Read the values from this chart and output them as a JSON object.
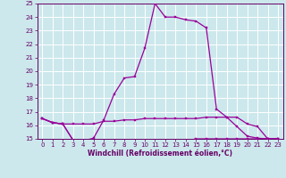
{
  "title": "",
  "xlabel": "Windchill (Refroidissement éolien,°C)",
  "background_color": "#cce8ec",
  "grid_color": "#ffffff",
  "line_color": "#990099",
  "xlim": [
    -0.5,
    23.5
  ],
  "ylim": [
    15,
    25
  ],
  "yticks": [
    15,
    16,
    17,
    18,
    19,
    20,
    21,
    22,
    23,
    24,
    25
  ],
  "xticks": [
    0,
    1,
    2,
    3,
    4,
    5,
    6,
    7,
    8,
    9,
    10,
    11,
    12,
    13,
    14,
    15,
    16,
    17,
    18,
    19,
    20,
    21,
    22,
    23
  ],
  "line1_x": [
    0,
    1,
    2,
    3,
    4,
    5,
    6,
    7,
    8,
    9,
    10,
    11,
    12,
    13,
    14,
    15,
    16,
    17,
    18,
    19,
    20,
    21,
    22,
    23
  ],
  "line1_y": [
    16.5,
    16.2,
    16.1,
    14.9,
    14.85,
    15.05,
    16.4,
    18.3,
    19.5,
    19.6,
    21.7,
    25.0,
    24.0,
    24.0,
    23.8,
    23.7,
    23.2,
    17.2,
    16.6,
    15.9,
    15.2,
    15.05,
    15.0,
    15.0
  ],
  "line2_x": [
    0,
    1,
    2,
    3,
    4,
    5,
    6,
    7,
    8,
    9,
    10,
    11,
    12,
    13,
    14,
    15,
    16,
    17,
    18,
    19,
    20,
    21,
    22,
    23
  ],
  "line2_y": [
    16.5,
    16.2,
    16.1,
    16.1,
    16.1,
    16.1,
    16.3,
    16.3,
    16.4,
    16.4,
    16.5,
    16.5,
    16.5,
    16.5,
    16.5,
    16.5,
    16.6,
    16.6,
    16.6,
    16.6,
    16.1,
    15.9,
    15.0,
    15.0
  ],
  "line3_x": [
    0,
    1,
    2,
    3,
    4,
    5,
    6,
    7,
    8,
    9,
    10,
    11,
    12,
    13,
    14,
    15,
    16,
    17,
    18,
    19,
    20,
    21,
    22,
    23
  ],
  "line3_y": [
    16.5,
    16.2,
    16.1,
    14.9,
    14.85,
    14.85,
    14.85,
    14.85,
    14.85,
    14.85,
    14.85,
    14.85,
    14.85,
    14.85,
    14.85,
    15.0,
    15.0,
    15.0,
    15.0,
    15.0,
    15.0,
    15.0,
    15.0,
    15.0
  ],
  "label_fontsize": 5.5,
  "tick_fontsize": 5,
  "xlabel_fontsize": 5.5
}
